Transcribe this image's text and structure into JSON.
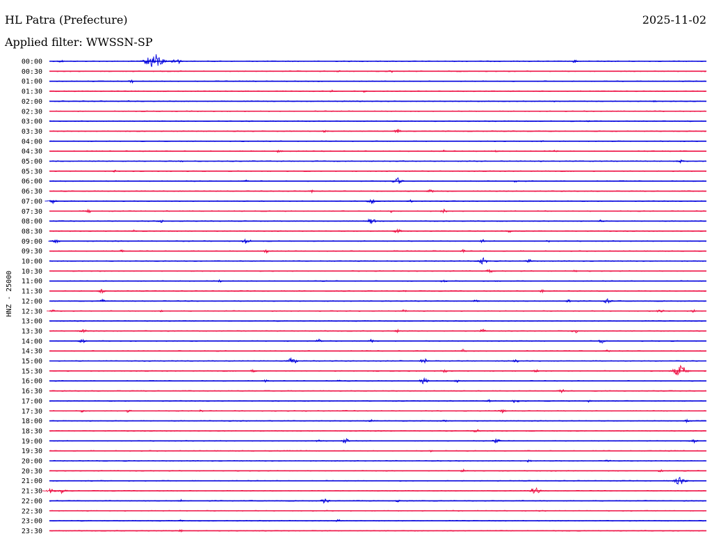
{
  "header": {
    "station": "HL Patra (Prefecture)",
    "date": "2025-11-02",
    "filter": "Applied filter: WWSSN-SP"
  },
  "chart_data": {
    "type": "line",
    "title": "HL Patra (Prefecture)",
    "subtitle": "Applied filter: WWSSN-SP",
    "ylabel": "HNZ - 25000",
    "xlabel": "",
    "grid": false,
    "legend": "none",
    "colors": {
      "even_rows": "#0000dd",
      "odd_rows": "#ee1144"
    },
    "rows": [
      {
        "label": "00:00",
        "color": "blue",
        "events": [
          [
            0.017,
            0.5
          ],
          [
            0.16,
            2.6
          ],
          [
            0.193,
            1.2
          ],
          [
            0.8,
            0.5
          ]
        ]
      },
      {
        "label": "00:30",
        "color": "red",
        "events": [
          [
            0.44,
            0.4
          ],
          [
            0.52,
            0.5
          ]
        ]
      },
      {
        "label": "01:00",
        "color": "blue",
        "events": [
          [
            0.125,
            0.6
          ]
        ]
      },
      {
        "label": "01:30",
        "color": "red",
        "events": [
          [
            0.43,
            0.4
          ],
          [
            0.48,
            0.4
          ]
        ]
      },
      {
        "label": "02:00",
        "color": "blue",
        "events": [
          [
            0.12,
            0.3
          ],
          [
            0.77,
            0.3
          ],
          [
            0.92,
            0.3
          ]
        ]
      },
      {
        "label": "02:30",
        "color": "red",
        "events": []
      },
      {
        "label": "03:00",
        "color": "blue",
        "events": [
          [
            0.82,
            0.3
          ]
        ]
      },
      {
        "label": "03:30",
        "color": "red",
        "events": [
          [
            0.42,
            0.5
          ],
          [
            0.53,
            0.7
          ]
        ]
      },
      {
        "label": "04:00",
        "color": "blue",
        "events": [
          [
            0.75,
            0.3
          ]
        ]
      },
      {
        "label": "04:30",
        "color": "red",
        "events": [
          [
            0.35,
            0.6
          ],
          [
            0.6,
            0.4
          ],
          [
            0.68,
            0.4
          ],
          [
            0.77,
            0.4
          ]
        ]
      },
      {
        "label": "05:00",
        "color": "blue",
        "events": [
          [
            0.2,
            0.4
          ],
          [
            0.96,
            0.6
          ]
        ]
      },
      {
        "label": "05:30",
        "color": "red",
        "events": [
          [
            0.1,
            0.4
          ]
        ]
      },
      {
        "label": "06:00",
        "color": "blue",
        "events": [
          [
            0.3,
            0.4
          ],
          [
            0.53,
            1.2
          ],
          [
            0.71,
            0.5
          ]
        ]
      },
      {
        "label": "06:30",
        "color": "red",
        "events": [
          [
            0.4,
            0.5
          ],
          [
            0.58,
            0.7
          ]
        ]
      },
      {
        "label": "07:00",
        "color": "blue",
        "events": [
          [
            0.005,
            0.8
          ],
          [
            0.49,
            0.9
          ],
          [
            0.55,
            0.5
          ]
        ]
      },
      {
        "label": "07:30",
        "color": "red",
        "events": [
          [
            0.06,
            0.6
          ],
          [
            0.52,
            0.5
          ],
          [
            0.6,
            0.7
          ]
        ]
      },
      {
        "label": "08:00",
        "color": "blue",
        "events": [
          [
            0.17,
            0.5
          ],
          [
            0.49,
            1.0
          ],
          [
            0.84,
            0.5
          ]
        ]
      },
      {
        "label": "08:30",
        "color": "red",
        "events": [
          [
            0.13,
            0.5
          ],
          [
            0.53,
            0.8
          ],
          [
            0.7,
            0.5
          ]
        ]
      },
      {
        "label": "09:00",
        "color": "blue",
        "events": [
          [
            0.01,
            0.8
          ],
          [
            0.3,
            1.0
          ],
          [
            0.66,
            0.6
          ],
          [
            0.76,
            0.5
          ]
        ]
      },
      {
        "label": "09:30",
        "color": "red",
        "events": [
          [
            0.11,
            0.4
          ],
          [
            0.33,
            0.6
          ],
          [
            0.63,
            0.6
          ]
        ]
      },
      {
        "label": "10:00",
        "color": "blue",
        "events": [
          [
            0.66,
            1.1
          ],
          [
            0.73,
            0.6
          ]
        ]
      },
      {
        "label": "10:30",
        "color": "red",
        "events": [
          [
            0.67,
            0.7
          ],
          [
            0.8,
            0.4
          ]
        ]
      },
      {
        "label": "11:00",
        "color": "blue",
        "events": [
          [
            0.26,
            0.5
          ],
          [
            0.6,
            0.6
          ],
          [
            0.68,
            0.4
          ]
        ]
      },
      {
        "label": "11:30",
        "color": "red",
        "events": [
          [
            0.08,
            0.7
          ],
          [
            0.54,
            0.4
          ],
          [
            0.75,
            0.5
          ]
        ]
      },
      {
        "label": "12:00",
        "color": "blue",
        "events": [
          [
            0.08,
            0.6
          ],
          [
            0.65,
            0.6
          ],
          [
            0.79,
            0.5
          ],
          [
            0.85,
            0.9
          ]
        ]
      },
      {
        "label": "12:30",
        "color": "red",
        "events": [
          [
            0.005,
            0.5
          ],
          [
            0.17,
            0.4
          ],
          [
            0.54,
            0.7
          ],
          [
            0.93,
            0.7
          ],
          [
            0.98,
            0.5
          ]
        ]
      },
      {
        "label": "13:00",
        "color": "blue",
        "events": []
      },
      {
        "label": "13:30",
        "color": "red",
        "events": [
          [
            0.05,
            0.9
          ],
          [
            0.53,
            0.5
          ],
          [
            0.66,
            0.8
          ],
          [
            0.8,
            0.7
          ]
        ]
      },
      {
        "label": "14:00",
        "color": "blue",
        "events": [
          [
            0.05,
            0.8
          ],
          [
            0.41,
            0.7
          ],
          [
            0.49,
            0.6
          ],
          [
            0.84,
            0.8
          ]
        ]
      },
      {
        "label": "14:30",
        "color": "red",
        "events": [
          [
            0.63,
            0.6
          ],
          [
            0.85,
            0.5
          ]
        ]
      },
      {
        "label": "15:00",
        "color": "blue",
        "events": [
          [
            0.37,
            1.1
          ],
          [
            0.57,
            0.9
          ],
          [
            0.71,
            0.6
          ]
        ]
      },
      {
        "label": "15:30",
        "color": "red",
        "events": [
          [
            0.31,
            0.5
          ],
          [
            0.6,
            0.8
          ],
          [
            0.74,
            0.6
          ],
          [
            0.96,
            1.9
          ]
        ]
      },
      {
        "label": "16:00",
        "color": "blue",
        "events": [
          [
            0.33,
            0.5
          ],
          [
            0.44,
            0.6
          ],
          [
            0.57,
            1.0
          ],
          [
            0.62,
            0.6
          ]
        ]
      },
      {
        "label": "16:30",
        "color": "red",
        "events": [
          [
            0.78,
            0.7
          ]
        ]
      },
      {
        "label": "17:00",
        "color": "blue",
        "events": [
          [
            0.67,
            0.5
          ],
          [
            0.71,
            0.8
          ],
          [
            0.82,
            0.5
          ]
        ]
      },
      {
        "label": "17:30",
        "color": "red",
        "events": [
          [
            0.05,
            0.5
          ],
          [
            0.12,
            0.6
          ],
          [
            0.23,
            0.5
          ],
          [
            0.69,
            0.8
          ]
        ]
      },
      {
        "label": "18:00",
        "color": "blue",
        "events": [
          [
            0.49,
            0.6
          ],
          [
            0.6,
            0.6
          ],
          [
            0.97,
            0.5
          ]
        ]
      },
      {
        "label": "18:30",
        "color": "red",
        "events": [
          [
            0.65,
            0.7
          ]
        ]
      },
      {
        "label": "19:00",
        "color": "blue",
        "events": [
          [
            0.41,
            0.5
          ],
          [
            0.45,
            0.9
          ],
          [
            0.68,
            0.8
          ],
          [
            0.98,
            0.8
          ]
        ]
      },
      {
        "label": "19:30",
        "color": "red",
        "events": [
          [
            0.58,
            0.4
          ]
        ]
      },
      {
        "label": "20:00",
        "color": "blue",
        "events": [
          [
            0.73,
            0.5
          ],
          [
            0.85,
            0.5
          ]
        ]
      },
      {
        "label": "20:30",
        "color": "red",
        "events": [
          [
            0.63,
            0.6
          ],
          [
            0.93,
            0.6
          ]
        ]
      },
      {
        "label": "21:00",
        "color": "blue",
        "events": [
          [
            0.96,
            1.4
          ]
        ]
      },
      {
        "label": "21:30",
        "color": "red",
        "events": [
          [
            0.003,
            1.0
          ],
          [
            0.02,
            0.9
          ],
          [
            0.74,
            1.2
          ]
        ]
      },
      {
        "label": "22:00",
        "color": "blue",
        "events": [
          [
            0.2,
            0.5
          ],
          [
            0.42,
            0.9
          ],
          [
            0.53,
            0.5
          ]
        ]
      },
      {
        "label": "22:30",
        "color": "red",
        "events": []
      },
      {
        "label": "23:00",
        "color": "blue",
        "events": [
          [
            0.2,
            0.4
          ],
          [
            0.44,
            0.5
          ]
        ]
      },
      {
        "label": "23:30",
        "color": "red",
        "events": [
          [
            0.2,
            0.4
          ]
        ]
      }
    ]
  }
}
